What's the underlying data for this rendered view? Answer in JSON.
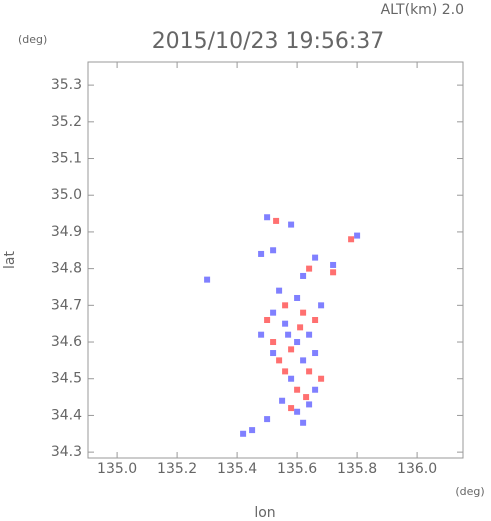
{
  "chart_data": {
    "type": "scatter",
    "title": "2015/10/23 19:56:37",
    "subtitle": "ALT(km) 2.0",
    "y_unit": "(deg)",
    "x_unit": "(deg)",
    "xlabel": "lon",
    "ylabel": "lat",
    "xlim": [
      134.903,
      136.153
    ],
    "ylim": [
      34.284,
      35.363
    ],
    "xticks": [
      {
        "value": 135,
        "label": "135.0"
      },
      135.2,
      135.4,
      135.6,
      135.8,
      {
        "value": 136,
        "label": "136.0"
      }
    ],
    "yticks": [
      34.3,
      34.4,
      34.5,
      34.6,
      34.7,
      34.8,
      34.9,
      {
        "value": 35,
        "label": "35.0"
      },
      35.1,
      35.2,
      35.3
    ],
    "series": [
      {
        "color": "#8080ff",
        "x": [
          135.5,
          135.52,
          135.48,
          135.58,
          135.62,
          135.66,
          135.72,
          135.8,
          135.3,
          135.52,
          135.56,
          135.6,
          135.64,
          135.52,
          135.62,
          135.58,
          135.66,
          135.55,
          135.6,
          135.64,
          135.5,
          135.45,
          135.42,
          135.68,
          135.54,
          135.6,
          135.66,
          135.57,
          135.62,
          135.48
        ],
        "values": [
          34.94,
          34.85,
          34.84,
          34.92,
          34.78,
          34.83,
          34.81,
          34.89,
          34.77,
          34.68,
          34.65,
          34.6,
          34.62,
          34.57,
          34.55,
          34.5,
          34.47,
          34.44,
          34.41,
          34.43,
          34.39,
          34.36,
          34.35,
          34.7,
          34.74,
          34.72,
          34.57,
          34.62,
          34.38,
          34.62
        ]
      },
      {
        "color": "#ff7070",
        "x": [
          135.53,
          135.64,
          135.72,
          135.56,
          135.62,
          135.66,
          135.52,
          135.58,
          135.64,
          135.56,
          135.6,
          135.58,
          135.63,
          135.54,
          135.68,
          135.61,
          135.78,
          135.5
        ],
        "values": [
          34.93,
          34.8,
          34.79,
          34.7,
          34.68,
          34.66,
          34.6,
          34.58,
          34.52,
          34.52,
          34.47,
          34.42,
          34.45,
          34.55,
          34.5,
          34.64,
          34.88,
          34.66
        ]
      }
    ]
  }
}
